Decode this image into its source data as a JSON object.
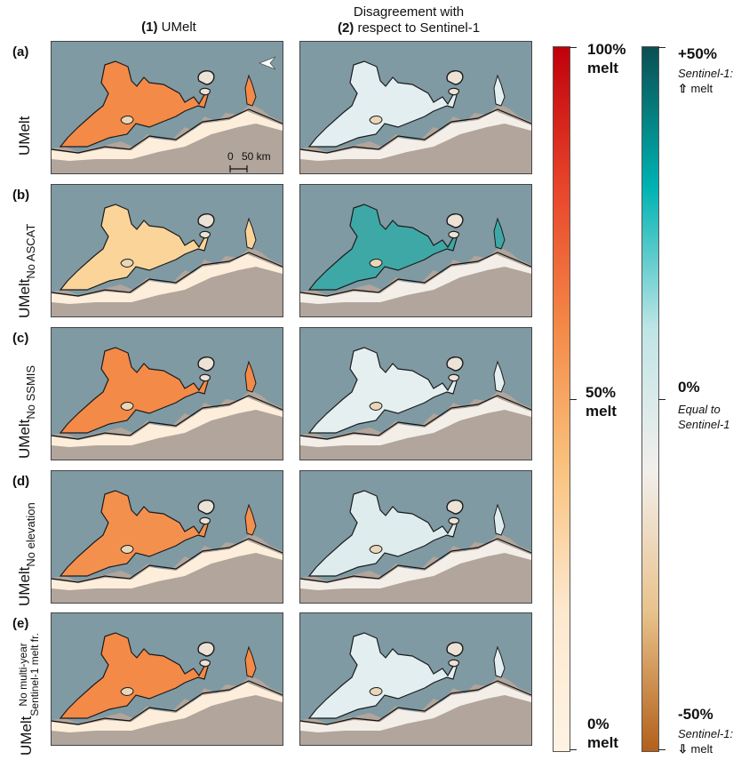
{
  "columns": {
    "col1": {
      "num": "(1)",
      "title": "UMelt"
    },
    "col2": {
      "num": "(2)",
      "line1": "Disagreement with",
      "line2": "respect to Sentinel-1"
    }
  },
  "rows": [
    {
      "letter": "(a)",
      "label": "UMelt",
      "sub": ""
    },
    {
      "letter": "(b)",
      "label": "UMelt",
      "sub": "No ASCAT"
    },
    {
      "letter": "(c)",
      "label": "UMelt",
      "sub": "No SSMIS"
    },
    {
      "letter": "(d)",
      "label": "UMelt",
      "sub": "No elevation"
    },
    {
      "letter": "(e)",
      "label": "UMelt",
      "sub_line1": "No multi-year",
      "sub_line2": "Sentinel-1 melt fr."
    }
  ],
  "scalebar": {
    "zero": "0",
    "length": "50 km"
  },
  "melt_colorbar": {
    "top_value": "100%",
    "top_unit": "melt",
    "mid_value": "50%",
    "mid_unit": "melt",
    "bottom_value": "0%",
    "bottom_unit": "melt",
    "colors": [
      "#c0000a",
      "#e8452a",
      "#f48a48",
      "#f9c37f",
      "#fde8cf",
      "#fff3e3"
    ]
  },
  "diff_colorbar": {
    "top_value": "+50%",
    "top_note": "Sentinel-1:",
    "top_note2_icon": "⇧",
    "top_note2": "melt",
    "mid_value": "0%",
    "mid_note1": "Equal to",
    "mid_note2": "Sentinel-1",
    "bottom_value": "-50%",
    "bottom_note": "Sentinel-1:",
    "bottom_note2_icon": "⇩",
    "bottom_note2": "melt",
    "colors": [
      "#0a4f52",
      "#00b3b3",
      "#bfe5e6",
      "#f2efec",
      "#e9c38d",
      "#b3601a"
    ]
  }
}
